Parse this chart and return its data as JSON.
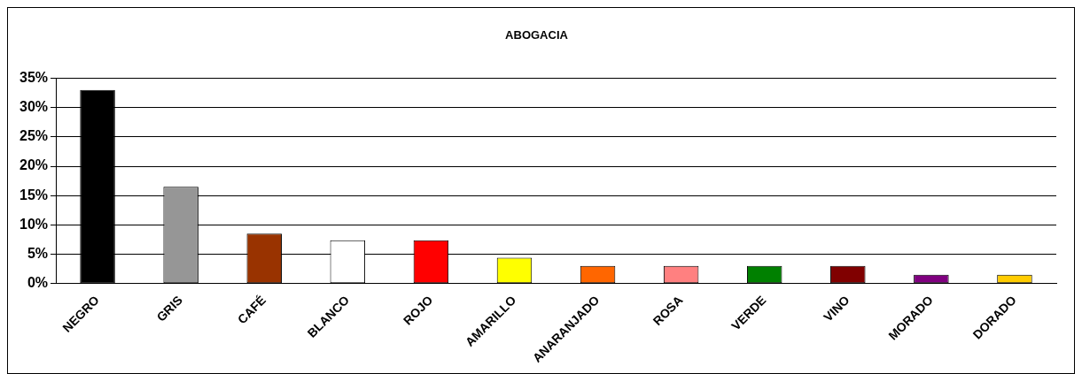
{
  "chart_data": {
    "type": "bar",
    "title": "ABOGACIA",
    "categories": [
      "NEGRO",
      "GRIS",
      "CAFÉ",
      "BLANCO",
      "ROJO",
      "AMARILLO",
      "ANARANJADO",
      "ROSA",
      "VERDE",
      "VINO",
      "MORADO",
      "DORADO"
    ],
    "values": [
      33,
      16.5,
      8.5,
      7.4,
      7.4,
      4.4,
      3,
      3,
      3,
      3,
      1.5,
      1.5
    ],
    "colors": [
      "#000000",
      "#969696",
      "#993300",
      "#ffffff",
      "#ff0000",
      "#ffff00",
      "#ff6600",
      "#ff8080",
      "#008000",
      "#800000",
      "#800080",
      "#ffcc00"
    ],
    "ylim": [
      0,
      35
    ],
    "yticks": [
      {
        "value": 0,
        "label": "0%"
      },
      {
        "value": 5,
        "label": "5%"
      },
      {
        "value": 10,
        "label": "10%"
      },
      {
        "value": 15,
        "label": "15%"
      },
      {
        "value": 20,
        "label": "20%"
      },
      {
        "value": 25,
        "label": "25%"
      },
      {
        "value": 30,
        "label": "30%"
      },
      {
        "value": 35,
        "label": "35%"
      }
    ],
    "grid": "y",
    "legend": false
  }
}
